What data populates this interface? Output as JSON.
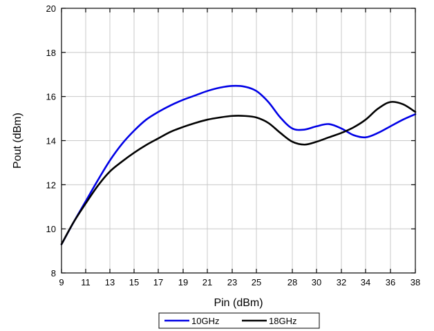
{
  "chart_data": {
    "type": "line",
    "title": "",
    "xlabel": "Pin (dBm)",
    "ylabel": "Pout (dBm)",
    "xlim": [
      9,
      38
    ],
    "ylim": [
      8,
      20
    ],
    "x_ticks": [
      9,
      11,
      13,
      15,
      17,
      19,
      21,
      23,
      25,
      28,
      30,
      32,
      34,
      36,
      38
    ],
    "y_ticks": [
      8,
      10,
      12,
      14,
      16,
      18,
      20
    ],
    "grid": true,
    "legend_position": "bottom-center",
    "series": [
      {
        "name": "10GHz",
        "color": "#0000e6",
        "x": [
          9,
          10,
          11,
          12,
          13,
          14,
          15,
          16,
          17,
          18,
          19,
          20,
          21,
          22,
          23,
          24,
          25,
          26,
          27,
          28,
          29,
          30,
          31,
          32,
          33,
          34,
          35,
          36,
          37,
          38
        ],
        "y": [
          9.3,
          10.3,
          11.25,
          12.2,
          13.1,
          13.85,
          14.45,
          14.95,
          15.3,
          15.6,
          15.85,
          16.05,
          16.25,
          16.4,
          16.48,
          16.45,
          16.25,
          15.75,
          15.05,
          14.55,
          14.5,
          14.65,
          14.75,
          14.55,
          14.25,
          14.15,
          14.35,
          14.65,
          14.95,
          15.2
        ]
      },
      {
        "name": "18GHz",
        "color": "#000000",
        "x": [
          9,
          10,
          11,
          12,
          13,
          14,
          15,
          16,
          17,
          18,
          19,
          20,
          21,
          22,
          23,
          24,
          25,
          26,
          27,
          28,
          29,
          30,
          31,
          32,
          33,
          34,
          35,
          36,
          37,
          38
        ],
        "y": [
          9.3,
          10.3,
          11.15,
          11.95,
          12.6,
          13.05,
          13.45,
          13.8,
          14.1,
          14.4,
          14.62,
          14.8,
          14.95,
          15.05,
          15.12,
          15.12,
          15.05,
          14.8,
          14.35,
          13.95,
          13.82,
          13.95,
          14.15,
          14.35,
          14.6,
          14.95,
          15.45,
          15.75,
          15.65,
          15.3
        ]
      }
    ]
  }
}
